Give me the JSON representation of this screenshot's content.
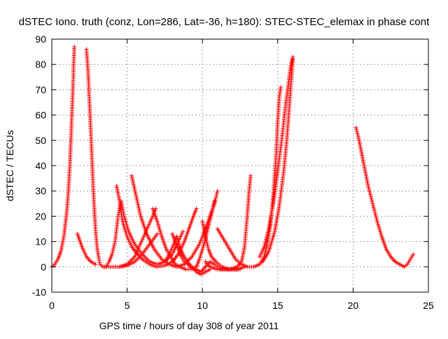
{
  "chart_data": {
    "type": "scatter",
    "title": "dSTEC Iono. truth (conz, Lon=286, Lat=-36, h=180): STEC-STEC_elemax in phase cont",
    "xlabel": "GPS time / hours of day 308 of year 2011",
    "ylabel": "dSTEC  / TECUs",
    "xlim": [
      0,
      25
    ],
    "ylim": [
      -10,
      90
    ],
    "xticks": [
      "0",
      "5",
      "10",
      "15",
      "20",
      "25"
    ],
    "yticks": [
      "-10",
      "0",
      "10",
      "20",
      "30",
      "40",
      "50",
      "60",
      "70",
      "80",
      "90"
    ],
    "grid": true,
    "marker": "+",
    "color": "#ff0000",
    "series": [
      {
        "points": [
          [
            0.0,
            0
          ],
          [
            0.2,
            1
          ],
          [
            0.4,
            3
          ],
          [
            0.6,
            6
          ],
          [
            0.8,
            12
          ],
          [
            1.0,
            22
          ],
          [
            1.1,
            30
          ],
          [
            1.2,
            40
          ],
          [
            1.3,
            55
          ],
          [
            1.4,
            70
          ],
          [
            1.45,
            80
          ],
          [
            1.5,
            87
          ]
        ]
      },
      {
        "points": [
          [
            2.3,
            86
          ],
          [
            2.4,
            78
          ],
          [
            2.5,
            65
          ],
          [
            2.6,
            52
          ],
          [
            2.7,
            38
          ],
          [
            2.8,
            25
          ],
          [
            2.9,
            15
          ],
          [
            3.0,
            8
          ],
          [
            3.1,
            4
          ],
          [
            3.2,
            1
          ],
          [
            3.4,
            0
          ],
          [
            3.6,
            0
          ],
          [
            3.8,
            2
          ],
          [
            4.0,
            5
          ],
          [
            4.2,
            10
          ],
          [
            4.3,
            15
          ],
          [
            4.4,
            20
          ],
          [
            4.5,
            23
          ],
          [
            4.6,
            26
          ]
        ]
      },
      {
        "points": [
          [
            1.7,
            13
          ],
          [
            2.0,
            8
          ],
          [
            2.3,
            4
          ],
          [
            2.6,
            2
          ],
          [
            2.9,
            1
          ]
        ]
      },
      {
        "points": [
          [
            4.3,
            32
          ],
          [
            4.5,
            26
          ],
          [
            4.7,
            18
          ],
          [
            5.0,
            12
          ],
          [
            5.3,
            8
          ],
          [
            5.7,
            5
          ],
          [
            6.0,
            3
          ],
          [
            6.5,
            1
          ],
          [
            7.0,
            0
          ],
          [
            7.5,
            0.5
          ],
          [
            8.0,
            2
          ],
          [
            8.4,
            5
          ],
          [
            8.8,
            10
          ],
          [
            9.1,
            15
          ],
          [
            9.4,
            20
          ],
          [
            9.6,
            23
          ]
        ]
      },
      {
        "points": [
          [
            4.6,
            26
          ],
          [
            4.8,
            20
          ],
          [
            5.1,
            14
          ],
          [
            5.5,
            9
          ],
          [
            6.0,
            5
          ],
          [
            6.5,
            2
          ],
          [
            7.0,
            1
          ],
          [
            7.5,
            2
          ],
          [
            8.0,
            5
          ],
          [
            8.4,
            10
          ],
          [
            8.7,
            14
          ]
        ]
      },
      {
        "points": [
          [
            5.3,
            36
          ],
          [
            5.6,
            28
          ],
          [
            5.9,
            20
          ],
          [
            6.3,
            13
          ],
          [
            6.8,
            7
          ],
          [
            7.3,
            3
          ],
          [
            7.8,
            1
          ],
          [
            8.3,
            0
          ],
          [
            8.8,
            1
          ],
          [
            9.3,
            4
          ],
          [
            9.8,
            9
          ],
          [
            10.2,
            15
          ],
          [
            10.5,
            20
          ],
          [
            10.8,
            25
          ],
          [
            11.0,
            30
          ]
        ]
      },
      {
        "points": [
          [
            3.5,
            0
          ],
          [
            4.0,
            0
          ],
          [
            4.5,
            0
          ],
          [
            5.0,
            0.5
          ],
          [
            5.5,
            2
          ],
          [
            6.0,
            5
          ],
          [
            6.5,
            9
          ],
          [
            7.0,
            13
          ]
        ]
      },
      {
        "points": [
          [
            4.5,
            0
          ],
          [
            5.0,
            1
          ],
          [
            5.5,
            4
          ],
          [
            5.8,
            8
          ],
          [
            6.1,
            12
          ],
          [
            6.4,
            16
          ],
          [
            6.7,
            20
          ],
          [
            6.9,
            23
          ]
        ]
      },
      {
        "points": [
          [
            6.7,
            23
          ],
          [
            7.0,
            18
          ],
          [
            7.3,
            12
          ],
          [
            7.6,
            7
          ],
          [
            7.9,
            4
          ],
          [
            8.2,
            1
          ],
          [
            8.5,
            0
          ],
          [
            8.9,
            -1
          ],
          [
            9.3,
            -1
          ],
          [
            9.6,
            0
          ],
          [
            9.8,
            3
          ],
          [
            10.0,
            7
          ],
          [
            10.2,
            11
          ],
          [
            10.4,
            16
          ],
          [
            10.6,
            21
          ],
          [
            10.8,
            26
          ]
        ]
      },
      {
        "points": [
          [
            7.5,
            2
          ],
          [
            7.8,
            5
          ],
          [
            8.1,
            9
          ],
          [
            8.3,
            12
          ],
          [
            8.5,
            8
          ],
          [
            8.7,
            5
          ],
          [
            9.0,
            2
          ],
          [
            9.3,
            0
          ],
          [
            9.6,
            -2
          ],
          [
            9.9,
            -3
          ],
          [
            10.2,
            -2
          ],
          [
            10.5,
            -1
          ]
        ]
      },
      {
        "points": [
          [
            8.0,
            13
          ],
          [
            8.2,
            10
          ],
          [
            8.4,
            7
          ],
          [
            8.6,
            4
          ],
          [
            8.8,
            2
          ],
          [
            9.2,
            0
          ],
          [
            9.6,
            -1
          ],
          [
            9.9,
            -2
          ],
          [
            10.2,
            0
          ],
          [
            10.5,
            2
          ],
          [
            10.8,
            1
          ],
          [
            11.2,
            -1
          ],
          [
            11.8,
            -1
          ],
          [
            12.3,
            -1
          ],
          [
            12.8,
            0
          ]
        ]
      },
      {
        "points": [
          [
            10.2,
            2
          ],
          [
            10.5,
            0
          ],
          [
            11.0,
            -1
          ],
          [
            11.5,
            -1
          ],
          [
            12.0,
            -1
          ],
          [
            12.5,
            -1
          ]
        ]
      },
      {
        "points": [
          [
            10.0,
            18
          ],
          [
            10.2,
            12
          ],
          [
            10.4,
            7
          ],
          [
            10.6,
            4
          ],
          [
            10.9,
            2
          ],
          [
            11.3,
            0
          ],
          [
            11.8,
            -1
          ],
          [
            12.3,
            0
          ],
          [
            12.6,
            2
          ],
          [
            12.8,
            8
          ],
          [
            12.9,
            15
          ],
          [
            13.0,
            22
          ],
          [
            13.1,
            30
          ],
          [
            13.2,
            36
          ]
        ]
      },
      {
        "points": [
          [
            11.0,
            15
          ],
          [
            11.3,
            12
          ],
          [
            11.6,
            9
          ],
          [
            11.9,
            6
          ],
          [
            12.2,
            3
          ],
          [
            12.6,
            1
          ],
          [
            13.0,
            0
          ],
          [
            13.4,
            0
          ],
          [
            13.8,
            1
          ],
          [
            14.1,
            4
          ],
          [
            14.3,
            9
          ],
          [
            14.5,
            16
          ],
          [
            14.7,
            28
          ],
          [
            14.9,
            45
          ],
          [
            15.0,
            58
          ],
          [
            15.1,
            67
          ],
          [
            15.2,
            71
          ]
        ]
      },
      {
        "points": [
          [
            13.8,
            4
          ],
          [
            14.1,
            8
          ],
          [
            14.4,
            15
          ],
          [
            14.7,
            25
          ],
          [
            15.0,
            38
          ],
          [
            15.3,
            52
          ],
          [
            15.5,
            63
          ],
          [
            15.7,
            72
          ],
          [
            15.85,
            79
          ],
          [
            16.0,
            83
          ]
        ]
      },
      {
        "points": [
          [
            14.0,
            2
          ],
          [
            14.4,
            6
          ],
          [
            14.8,
            14
          ],
          [
            15.1,
            24
          ],
          [
            15.4,
            38
          ],
          [
            15.6,
            50
          ],
          [
            15.75,
            62
          ],
          [
            15.9,
            74
          ],
          [
            16.0,
            82
          ]
        ]
      },
      {
        "points": [
          [
            20.2,
            55
          ],
          [
            20.4,
            50
          ],
          [
            20.6,
            44
          ],
          [
            20.8,
            38
          ],
          [
            21.0,
            32
          ],
          [
            21.3,
            25
          ],
          [
            21.6,
            18
          ],
          [
            21.9,
            12
          ],
          [
            22.2,
            7
          ],
          [
            22.5,
            4
          ],
          [
            22.8,
            2
          ],
          [
            23.1,
            1
          ],
          [
            23.4,
            0
          ],
          [
            23.6,
            1
          ],
          [
            23.8,
            3
          ],
          [
            24.0,
            5
          ]
        ]
      }
    ]
  }
}
